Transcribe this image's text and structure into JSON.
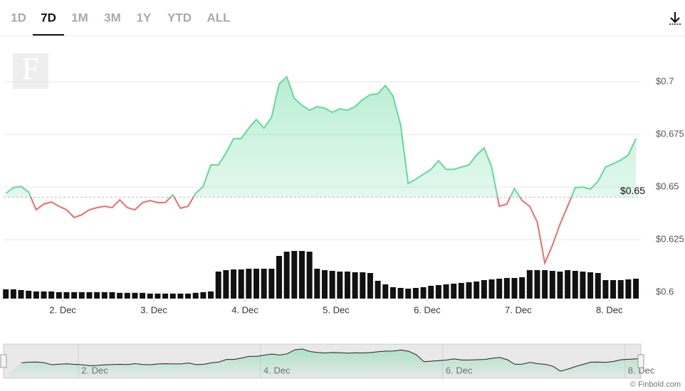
{
  "tabs": [
    "1D",
    "7D",
    "1M",
    "3M",
    "1Y",
    "YTD",
    "ALL"
  ],
  "selected_tab_index": 1,
  "logo": "F",
  "credit": "© Finbold.com",
  "chart_data": {
    "type": "line",
    "x": [
      9,
      11,
      13,
      15,
      17,
      19,
      21,
      23,
      25,
      27,
      29,
      31,
      33,
      35,
      37,
      39,
      41,
      43,
      45,
      47,
      49,
      51,
      53,
      55,
      57,
      59,
      61,
      63,
      65,
      67,
      69,
      71,
      73,
      75,
      77,
      79,
      81,
      83,
      85,
      87,
      89,
      91,
      93,
      95,
      97,
      99,
      101,
      103,
      105,
      107,
      109,
      111,
      113,
      115,
      117,
      119,
      121,
      123,
      125,
      127,
      129,
      131,
      133,
      135,
      137,
      139,
      141,
      143,
      145,
      147,
      149,
      151,
      153,
      155,
      157,
      159,
      161,
      163,
      165,
      167,
      169,
      171,
      173,
      175
    ],
    "values": [
      0.647,
      0.6497,
      0.6503,
      0.6476,
      0.6392,
      0.6419,
      0.6429,
      0.6409,
      0.6392,
      0.6355,
      0.6368,
      0.6392,
      0.6402,
      0.6409,
      0.6402,
      0.6439,
      0.6402,
      0.6392,
      0.6426,
      0.6436,
      0.6426,
      0.6426,
      0.6463,
      0.6399,
      0.6409,
      0.647,
      0.6503,
      0.6605,
      0.6605,
      0.6662,
      0.673,
      0.673,
      0.678,
      0.6821,
      0.678,
      0.6831,
      0.699,
      0.7024,
      0.6922,
      0.6889,
      0.6865,
      0.6882,
      0.6875,
      0.6855,
      0.6872,
      0.6865,
      0.6882,
      0.6916,
      0.6939,
      0.6943,
      0.6983,
      0.6932,
      0.6797,
      0.6517,
      0.6537,
      0.6561,
      0.6584,
      0.6625,
      0.6584,
      0.6584,
      0.6595,
      0.6605,
      0.6652,
      0.6686,
      0.6595,
      0.6409,
      0.6419,
      0.6493,
      0.6436,
      0.6409,
      0.6334,
      0.6139,
      0.6223,
      0.6324,
      0.6409,
      0.6497,
      0.65,
      0.649,
      0.6527,
      0.6595,
      0.6611,
      0.6628,
      0.6652,
      0.673
    ],
    "volume": [
      13,
      13,
      12,
      11,
      10,
      10,
      10,
      9,
      9,
      9,
      9,
      9,
      9,
      9,
      9,
      8,
      8,
      8,
      8,
      7,
      7,
      7,
      7,
      7,
      7,
      8,
      9,
      10,
      38,
      40,
      41,
      41,
      42,
      42,
      42,
      42,
      60,
      66,
      67,
      67,
      66,
      42,
      40,
      39,
      38,
      38,
      37,
      37,
      36,
      25,
      20,
      16,
      15,
      14,
      15,
      16,
      18,
      19,
      20,
      21,
      22,
      23,
      24,
      26,
      27,
      28,
      29,
      29,
      30,
      40,
      40,
      40,
      39,
      38,
      40,
      39,
      38,
      37,
      36,
      26,
      26,
      26,
      27,
      28
    ],
    "vlim": [
      0,
      100
    ],
    "reference_line": {
      "value": 0.6452,
      "label": "$0.65"
    },
    "up_color": "#63d99c",
    "down_color": "#ef6b6b",
    "volume_color": "#111111",
    "xlim": [
      8.4,
      176.3
    ],
    "xticks": [
      {
        "value": 24,
        "label": "2. Dec"
      },
      {
        "value": 48,
        "label": "3. Dec"
      },
      {
        "value": 72,
        "label": "4. Dec"
      },
      {
        "value": 96,
        "label": "5. Dec"
      },
      {
        "value": 120,
        "label": "6. Dec"
      },
      {
        "value": 144,
        "label": "7. Dec"
      },
      {
        "value": 168,
        "label": "8. Dec"
      }
    ],
    "ylim": [
      0.597,
      0.722
    ],
    "yticks": [
      {
        "value": 0.6,
        "label": "$0.6"
      },
      {
        "value": 0.625,
        "label": "$0.625"
      },
      {
        "value": 0.65,
        "label": "$0.65"
      },
      {
        "value": 0.675,
        "label": "$0.675"
      },
      {
        "value": 0.7,
        "label": "$0.7"
      }
    ],
    "navigator_tick_indices": [
      0,
      2,
      4,
      6
    ],
    "grid": true
  }
}
